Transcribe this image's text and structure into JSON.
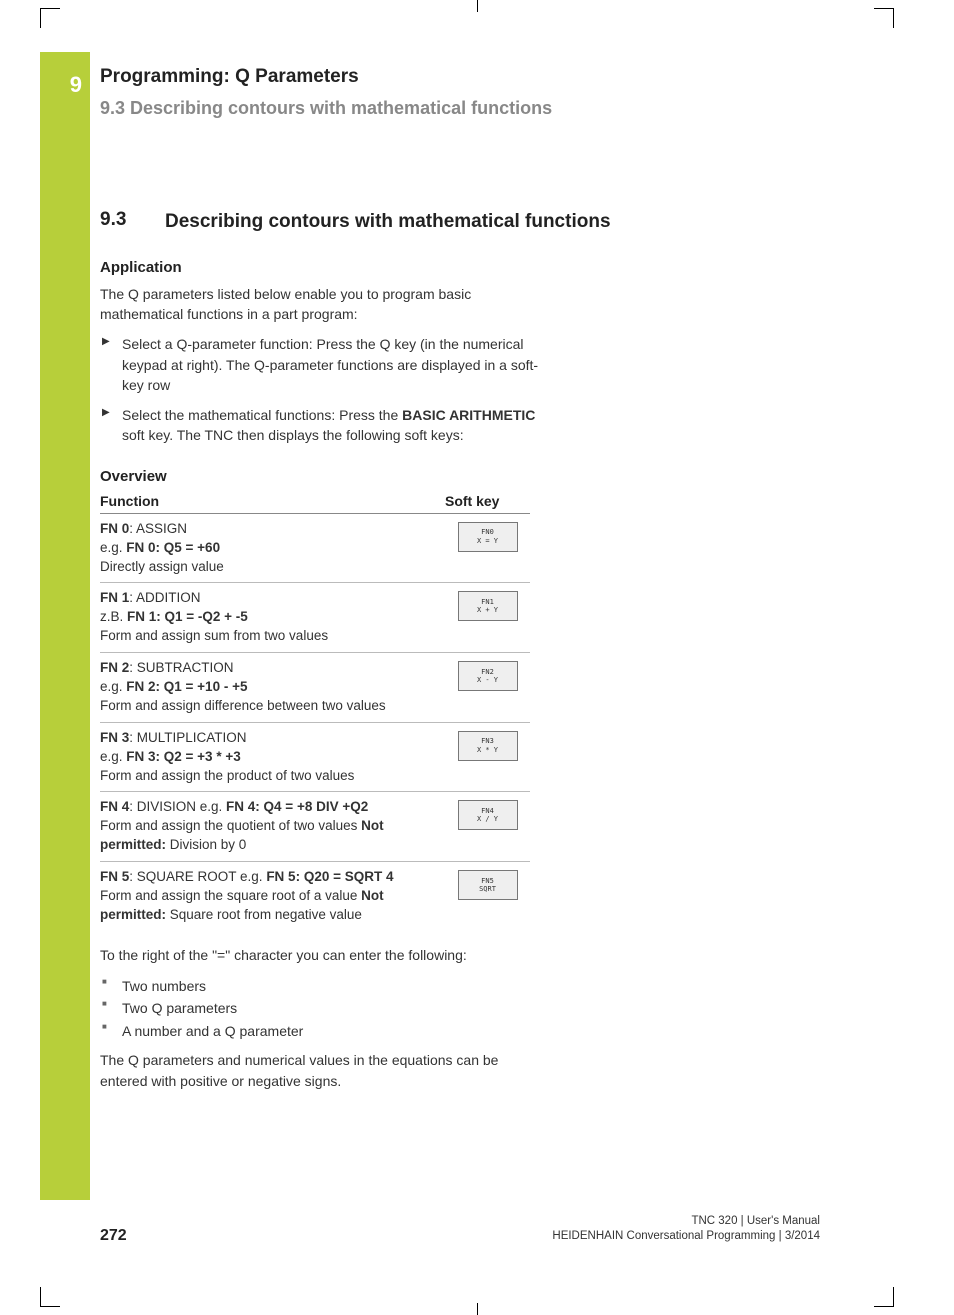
{
  "page": {
    "chapter_number": "9",
    "chapter_title": "Programming: Q Parameters",
    "running_section": "9.3   Describing contours with mathematical functions",
    "section_number": "9.3",
    "section_title": "Describing contours with mathematical functions",
    "page_number": "272",
    "doc_line1": "TNC 320 | User's Manual",
    "doc_line2": "HEIDENHAIN Conversational Programming | 3/2014"
  },
  "colors": {
    "accent": "#b7cf3a",
    "heading_grey": "#888888",
    "text": "#333333",
    "rule": "#bbbbbb",
    "softkey_bg": "#efefef",
    "softkey_border": "#777777"
  },
  "application": {
    "heading": "Application",
    "intro": "The Q parameters listed below enable you to program basic mathematical functions in a part program:",
    "steps": [
      "Select a Q-parameter function: Press the Q key (in the numerical keypad at right). The Q-parameter functions are displayed in a soft-key row",
      "Select the mathematical functions: Press the <b>BASIC ARITHMETIC</b> soft key. The TNC then displays the following soft keys:"
    ]
  },
  "overview": {
    "heading": "Overview",
    "col_function": "Function",
    "col_softkey": "Soft key",
    "rows": [
      {
        "html": "<b>FN 0</b>: ASSIGN<br>e.g. <b>FN 0: Q5 = +60</b><br>Directly assign value",
        "key_line1": "FN0",
        "key_line2": "X = Y"
      },
      {
        "html": "<b>FN 1</b>: ADDITION<br>z.B. <b>FN 1: Q1 = -Q2 + -5</b><br>Form and assign sum from two values",
        "key_line1": "FN1",
        "key_line2": "X + Y"
      },
      {
        "html": "<b>FN 2</b>: SUBTRACTION<br>e.g. <b>FN 2: Q1 = +10 - +5</b><br>Form and assign difference between two values",
        "key_line1": "FN2",
        "key_line2": "X - Y"
      },
      {
        "html": "<b>FN 3</b>: MULTIPLICATION<br>e.g. <b>FN 3: Q2 = +3 * +3</b><br>Form and assign the product of two values",
        "key_line1": "FN3",
        "key_line2": "X * Y"
      },
      {
        "html": "<b>FN 4</b>: DIVISION e.g. <b>FN 4: Q4 = +8 DIV +Q2</b><br>Form and assign the quotient of two values <b>Not permitted:</b> Division by 0",
        "key_line1": "FN4",
        "key_line2": "X / Y"
      },
      {
        "html": "<b>FN 5</b>: SQUARE ROOT e.g. <b>FN 5: Q20 = SQRT 4</b><br>Form and assign the square root of a value <b>Not permitted:</b> Square root from negative value",
        "key_line1": "FN5",
        "key_line2": "SQRT"
      }
    ],
    "after_text": "To the right of the \"=\" character you can enter the following:",
    "after_list": [
      "Two numbers",
      "Two Q parameters",
      "A number and a Q parameter"
    ],
    "closing_text": "The Q parameters and numerical values in the equations can be entered with positive or negative signs."
  }
}
